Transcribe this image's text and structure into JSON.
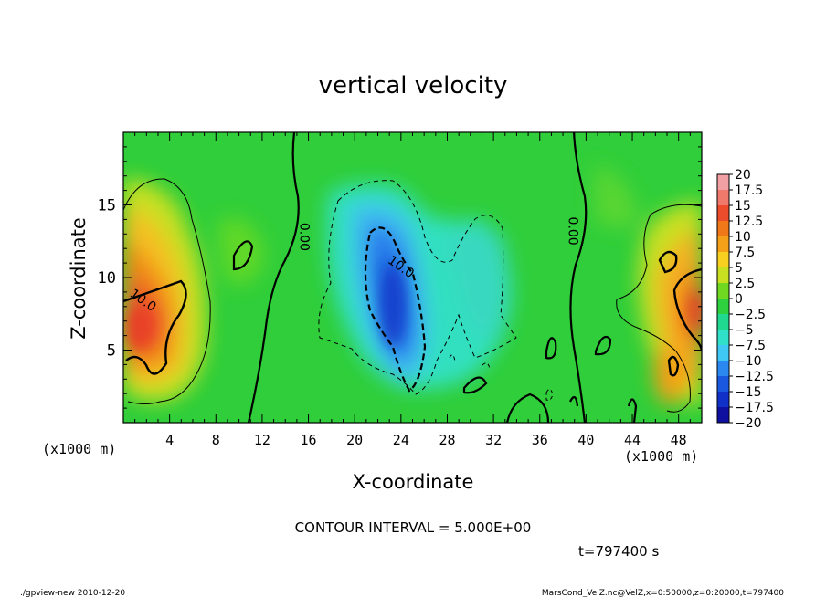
{
  "chart_data": {
    "type": "heatmap",
    "title": "vertical velocity",
    "xlabel": "X-coordinate",
    "ylabel": "Z-coordinate",
    "x_unit_label": "(x1000 m)",
    "y_unit_label": "(x1000 m)",
    "xlim": [
      0,
      50
    ],
    "ylim": [
      0,
      20
    ],
    "x_ticks": [
      4,
      8,
      12,
      16,
      20,
      24,
      28,
      32,
      36,
      40,
      44,
      48
    ],
    "y_ticks": [
      5,
      10,
      15
    ],
    "contour_labels": [
      {
        "text": "10.0",
        "x": 1.5,
        "y": 8.2
      },
      {
        "text": "0.00",
        "x": 15.3,
        "y": 12.8
      },
      {
        "text": "10.0",
        "x": 23.8,
        "y": 10.5
      },
      {
        "text": "0.00",
        "x": 38.5,
        "y": 13.2
      }
    ],
    "colorbar": {
      "levels": [
        "20",
        "17.5",
        "15",
        "12.5",
        "10",
        "7.5",
        "5",
        "2.5",
        "0",
        "−2.5",
        "−5",
        "−7.5",
        "−10",
        "−12.5",
        "−15",
        "−17.5",
        "−20"
      ],
      "colors": [
        "#f2a0a4",
        "#ef7a6c",
        "#ec4b2c",
        "#f07818",
        "#f4a018",
        "#f8d020",
        "#c8e020",
        "#70d820",
        "#2ed040",
        "#20d890",
        "#30e0c8",
        "#40c8f4",
        "#2a88f0",
        "#1a58e0",
        "#1030c8",
        "#1010a0",
        "#6020a8"
      ]
    },
    "contour_interval": "CONTOUR INTERVAL = 5.000E+00",
    "time_label": "t=797400 s"
  },
  "footer": {
    "left": "./gpview-new   2010-12-20",
    "right": "MarsCond_VelZ.nc@VelZ,x=0:50000,z=0:20000,t=797400"
  }
}
